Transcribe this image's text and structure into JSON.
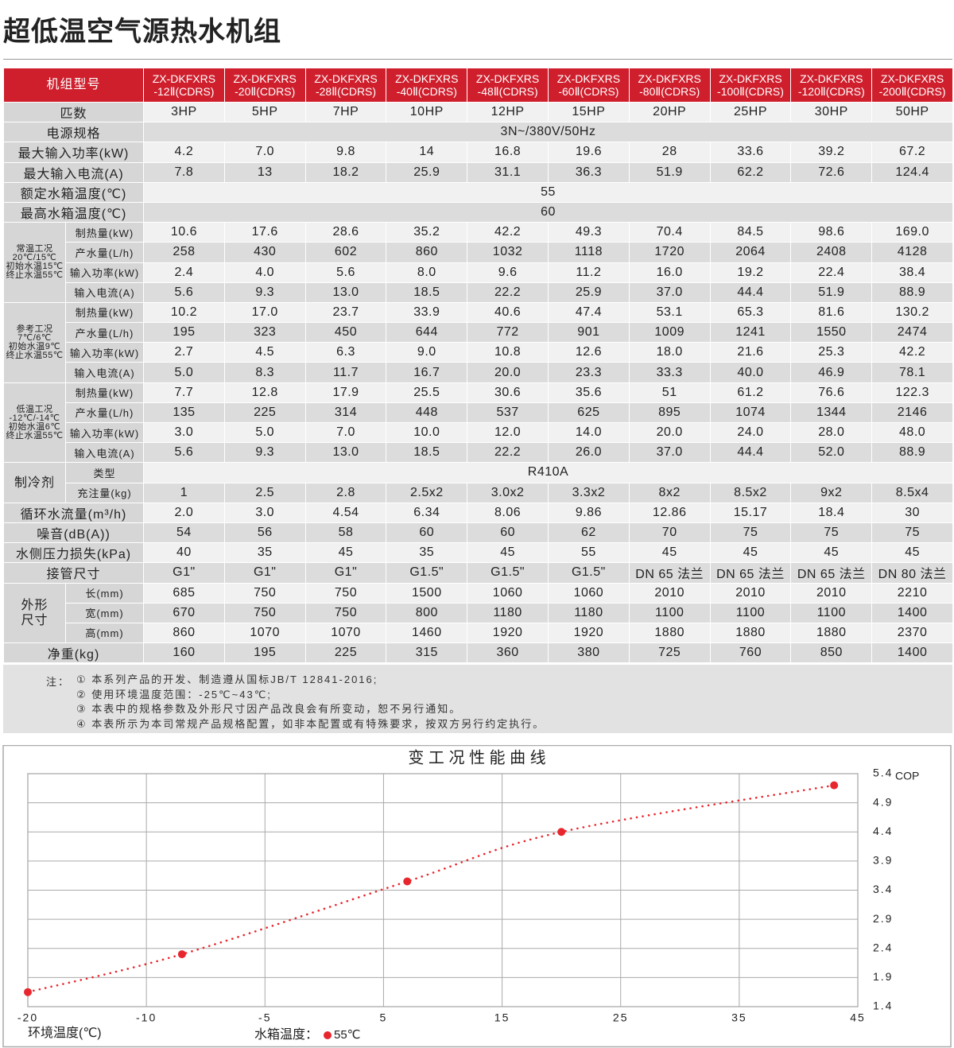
{
  "title": "超低温空气源热水机组",
  "table": {
    "header_label": "机组型号",
    "models": [
      [
        "ZX-DKFXRS",
        "-12Ⅱ(CDRS)"
      ],
      [
        "ZX-DKFXRS",
        "-20Ⅱ(CDRS)"
      ],
      [
        "ZX-DKFXRS",
        "-28Ⅱ(CDRS)"
      ],
      [
        "ZX-DKFXRS",
        "-40Ⅱ(CDRS)"
      ],
      [
        "ZX-DKFXRS",
        "-48Ⅱ(CDRS)"
      ],
      [
        "ZX-DKFXRS",
        "-60Ⅱ(CDRS)"
      ],
      [
        "ZX-DKFXRS",
        "-80Ⅱ(CDRS)"
      ],
      [
        "ZX-DKFXRS",
        "-100Ⅱ(CDRS)"
      ],
      [
        "ZX-DKFXRS",
        "-120Ⅱ(CDRS)"
      ],
      [
        "ZX-DKFXRS",
        "-200Ⅱ(CDRS)"
      ]
    ],
    "rows": [
      {
        "label": "匹数",
        "values": [
          "3HP",
          "5HP",
          "7HP",
          "10HP",
          "12HP",
          "15HP",
          "20HP",
          "25HP",
          "30HP",
          "50HP"
        ]
      },
      {
        "label": "电源规格",
        "span": "3N~/380V/50Hz"
      },
      {
        "label": "最大输入功率(kW)",
        "values": [
          "4.2",
          "7.0",
          "9.8",
          "14",
          "16.8",
          "19.6",
          "28",
          "33.6",
          "39.2",
          "67.2"
        ]
      },
      {
        "label": "最大输入电流(A)",
        "values": [
          "7.8",
          "13",
          "18.2",
          "25.9",
          "31.1",
          "36.3",
          "51.9",
          "62.2",
          "72.6",
          "124.4"
        ]
      },
      {
        "label": "额定水箱温度(℃)",
        "span": "55"
      },
      {
        "label": "最高水箱温度(℃)",
        "span": "60"
      },
      {
        "group": [
          "常温工况",
          "20℃/15℃",
          "初始水温15℃",
          "终止水温55℃"
        ],
        "rows": [
          {
            "label": "制热量(kW)",
            "values": [
              "10.6",
              "17.6",
              "28.6",
              "35.2",
              "42.2",
              "49.3",
              "70.4",
              "84.5",
              "98.6",
              "169.0"
            ]
          },
          {
            "label": "产水量(L/h)",
            "values": [
              "258",
              "430",
              "602",
              "860",
              "1032",
              "1118",
              "1720",
              "2064",
              "2408",
              "4128"
            ]
          },
          {
            "label": "输入功率(kW)",
            "values": [
              "2.4",
              "4.0",
              "5.6",
              "8.0",
              "9.6",
              "11.2",
              "16.0",
              "19.2",
              "22.4",
              "38.4"
            ]
          },
          {
            "label": "输入电流(A)",
            "values": [
              "5.6",
              "9.3",
              "13.0",
              "18.5",
              "22.2",
              "25.9",
              "37.0",
              "44.4",
              "51.9",
              "88.9"
            ]
          }
        ]
      },
      {
        "group": [
          "参考工况",
          "7℃/6℃",
          "初始水温9℃",
          "终止水温55℃"
        ],
        "rows": [
          {
            "label": "制热量(kW)",
            "values": [
              "10.2",
              "17.0",
              "23.7",
              "33.9",
              "40.6",
              "47.4",
              "53.1",
              "65.3",
              "81.6",
              "130.2"
            ]
          },
          {
            "label": "产水量(L/h)",
            "values": [
              "195",
              "323",
              "450",
              "644",
              "772",
              "901",
              "1009",
              "1241",
              "1550",
              "2474"
            ]
          },
          {
            "label": "输入功率(kW)",
            "values": [
              "2.7",
              "4.5",
              "6.3",
              "9.0",
              "10.8",
              "12.6",
              "18.0",
              "21.6",
              "25.3",
              "42.2"
            ]
          },
          {
            "label": "输入电流(A)",
            "values": [
              "5.0",
              "8.3",
              "11.7",
              "16.7",
              "20.0",
              "23.3",
              "33.3",
              "40.0",
              "46.9",
              "78.1"
            ]
          }
        ]
      },
      {
        "group": [
          "低温工况",
          "-12℃/-14℃",
          "初始水温6℃",
          "终止水温55℃"
        ],
        "rows": [
          {
            "label": "制热量(kW)",
            "values": [
              "7.7",
              "12.8",
              "17.9",
              "25.5",
              "30.6",
              "35.6",
              "51",
              "61.2",
              "76.6",
              "122.3"
            ]
          },
          {
            "label": "产水量(L/h)",
            "values": [
              "135",
              "225",
              "314",
              "448",
              "537",
              "625",
              "895",
              "1074",
              "1344",
              "2146"
            ]
          },
          {
            "label": "输入功率(kW)",
            "values": [
              "3.0",
              "5.0",
              "7.0",
              "10.0",
              "12.0",
              "14.0",
              "20.0",
              "24.0",
              "28.0",
              "48.0"
            ]
          },
          {
            "label": "输入电流(A)",
            "values": [
              "5.6",
              "9.3",
              "13.0",
              "18.5",
              "22.2",
              "26.0",
              "37.0",
              "44.4",
              "52.0",
              "88.9"
            ]
          }
        ]
      },
      {
        "group": [
          "制冷剂"
        ],
        "rows": [
          {
            "label": "类型",
            "span": "R410A"
          },
          {
            "label": "充注量(kg)",
            "values": [
              "1",
              "2.5",
              "2.8",
              "2.5x2",
              "3.0x2",
              "3.3x2",
              "8x2",
              "8.5x2",
              "9x2",
              "8.5x4"
            ]
          }
        ]
      },
      {
        "label": "循环水流量(m³/h)",
        "values": [
          "2.0",
          "3.0",
          "4.54",
          "6.34",
          "8.06",
          "9.86",
          "12.86",
          "15.17",
          "18.4",
          "30"
        ]
      },
      {
        "label": "噪音(dB(A))",
        "values": [
          "54",
          "56",
          "58",
          "60",
          "60",
          "62",
          "70",
          "75",
          "75",
          "75"
        ]
      },
      {
        "label": "水侧压力损失(kPa)",
        "values": [
          "40",
          "35",
          "45",
          "35",
          "45",
          "55",
          "45",
          "45",
          "45",
          "45"
        ]
      },
      {
        "label": "接管尺寸",
        "values": [
          "G1\"",
          "G1\"",
          "G1\"",
          "G1.5\"",
          "G1.5\"",
          "G1.5\"",
          "DN 65 法兰",
          "DN 65 法兰",
          "DN 65 法兰",
          "DN 80 法兰"
        ]
      },
      {
        "group": [
          "外形",
          "尺寸"
        ],
        "rows": [
          {
            "label": "长(mm)",
            "values": [
              "685",
              "750",
              "750",
              "1500",
              "1060",
              "1060",
              "2010",
              "2010",
              "2010",
              "2210"
            ]
          },
          {
            "label": "宽(mm)",
            "values": [
              "670",
              "750",
              "750",
              "800",
              "1180",
              "1180",
              "1100",
              "1100",
              "1100",
              "1400"
            ]
          },
          {
            "label": "高(mm)",
            "values": [
              "860",
              "1070",
              "1070",
              "1460",
              "1920",
              "1920",
              "1880",
              "1880",
              "1880",
              "2370"
            ]
          }
        ]
      },
      {
        "label": "净重(kg)",
        "values": [
          "160",
          "195",
          "225",
          "315",
          "360",
          "380",
          "725",
          "760",
          "850",
          "1400"
        ]
      }
    ]
  },
  "notes": {
    "label": "注：",
    "items": [
      "① 本系列产品的开发、制造遵从国标JB/T 12841-2016;",
      "② 使用环境温度范围：-25℃~43℃;",
      "③ 本表中的规格参数及外形尺寸因产品改良会有所变动，恕不另行通知。",
      "④ 本表所示为本司常规产品规格配置，如非本配置或有特殊要求，按双方另行约定执行。"
    ]
  },
  "chart_data": {
    "type": "line",
    "title": "变 工 况 性 能 曲 线",
    "x_label": "环境温度(℃)",
    "y_label": "COP",
    "legend_title": "水箱温度：",
    "x": [
      -20,
      -8.5,
      7,
      20,
      43
    ],
    "series": [
      {
        "name": "55℃",
        "color": "#e8262d",
        "values": [
          1.65,
          2.3,
          3.55,
          4.4,
          5.2
        ]
      }
    ],
    "xlim": [
      -20,
      45
    ],
    "xticks": [
      -20,
      -10,
      -5,
      5,
      15,
      25,
      35,
      45
    ],
    "ylim": [
      1.4,
      5.4
    ],
    "yticks": [
      1.4,
      1.9,
      2.4,
      2.9,
      3.4,
      3.9,
      4.4,
      4.9,
      5.4
    ],
    "grid": true
  }
}
